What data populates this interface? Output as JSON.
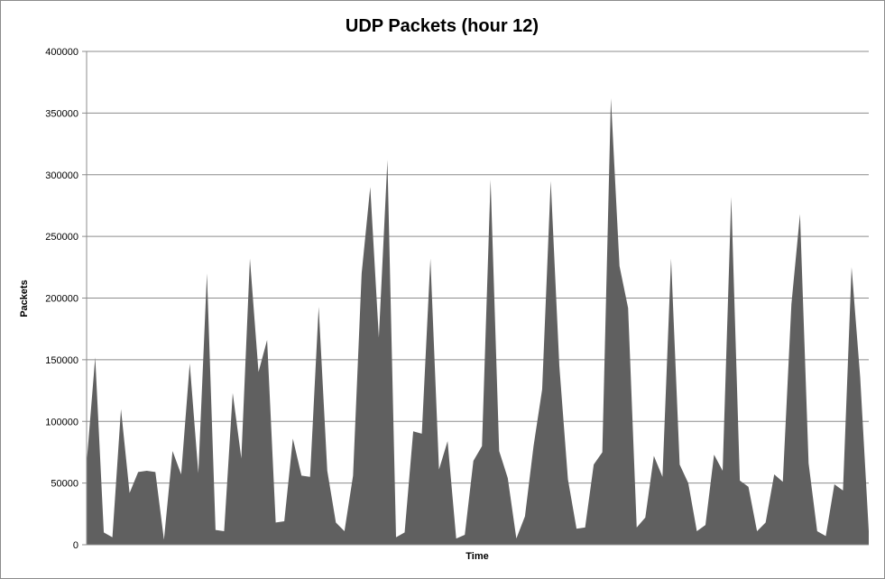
{
  "chart_data": {
    "type": "area",
    "title": "UDP Packets (hour 12)",
    "xlabel": "Time",
    "ylabel": "Packets",
    "ylim": [
      0,
      400000
    ],
    "yticks": [
      0,
      50000,
      100000,
      150000,
      200000,
      250000,
      300000,
      350000,
      400000
    ],
    "grid": true,
    "color": "#606060",
    "values": [
      66000,
      152000,
      10000,
      6000,
      110000,
      42000,
      59000,
      60000,
      59000,
      4000,
      76000,
      57000,
      147000,
      58000,
      220000,
      12000,
      11000,
      123000,
      70000,
      232000,
      140000,
      166000,
      18000,
      19000,
      86000,
      56000,
      55000,
      193000,
      60000,
      18000,
      11000,
      56000,
      220000,
      290000,
      168000,
      312000,
      6000,
      10000,
      92000,
      90000,
      232000,
      61000,
      84000,
      5000,
      8000,
      68000,
      80000,
      296000,
      76000,
      54000,
      5000,
      23000,
      80000,
      126000,
      295000,
      145000,
      53000,
      13000,
      14000,
      65000,
      75000,
      362000,
      226000,
      192000,
      14000,
      22000,
      72000,
      55000,
      232000,
      65000,
      50000,
      11000,
      16000,
      73000,
      60000,
      282000,
      52000,
      47000,
      11000,
      18000,
      57000,
      51000,
      195000,
      268000,
      66000,
      11000,
      7000,
      49000,
      44000,
      225000,
      136000,
      11000
    ]
  }
}
